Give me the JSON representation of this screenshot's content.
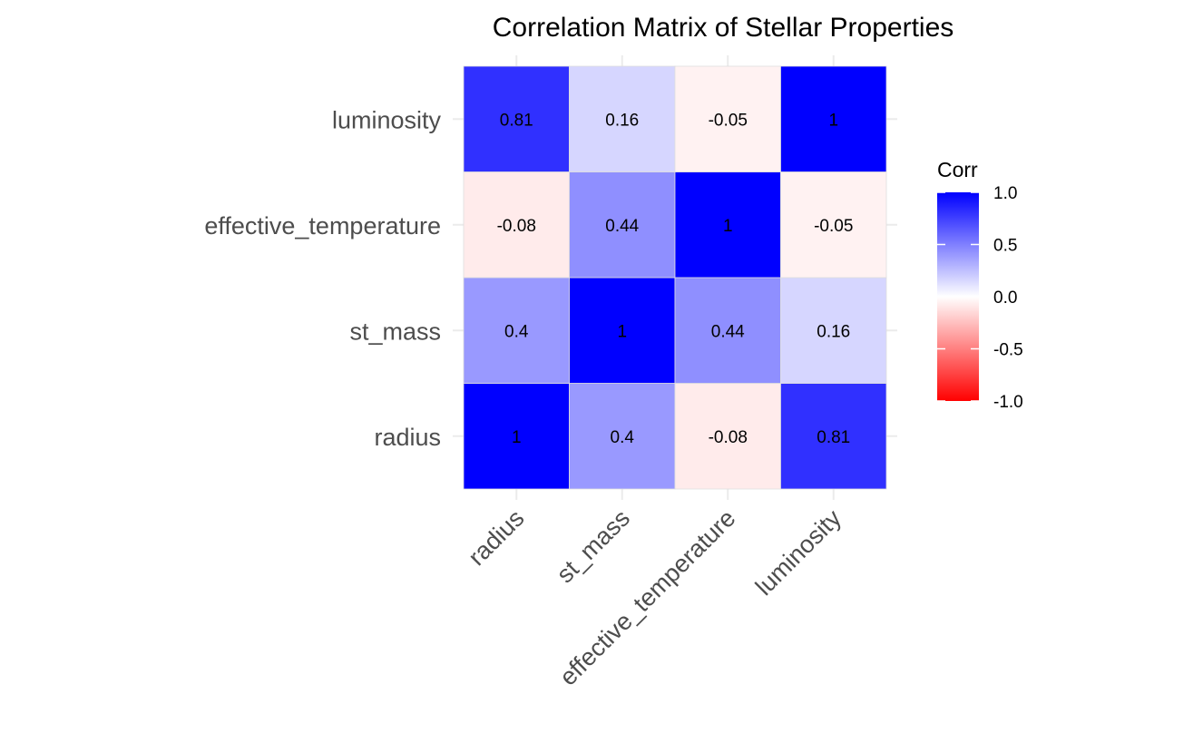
{
  "chart_data": {
    "type": "heatmap",
    "title": "Correlation Matrix of Stellar Properties",
    "variables": [
      "radius",
      "st_mass",
      "effective_temperature",
      "luminosity"
    ],
    "matrix": [
      [
        1,
        0.4,
        -0.08,
        0.81
      ],
      [
        0.4,
        1,
        0.44,
        0.16
      ],
      [
        -0.08,
        0.44,
        1,
        -0.05
      ],
      [
        0.81,
        0.16,
        -0.05,
        1
      ]
    ],
    "cell_labels": [
      [
        "1",
        "0.4",
        "-0.08",
        "0.81"
      ],
      [
        "0.4",
        "1",
        "0.44",
        "0.16"
      ],
      [
        "-0.08",
        "0.44",
        "1",
        "-0.05"
      ],
      [
        "0.81",
        "0.16",
        "-0.05",
        "1"
      ]
    ],
    "color_scale": {
      "low": "#ff0000",
      "mid": "#ffffff",
      "high": "#0000ff",
      "limits": [
        -1,
        1
      ]
    },
    "legend": {
      "title": "Corr",
      "ticks": [
        1.0,
        0.5,
        0.0,
        -0.5,
        -1.0
      ],
      "tick_labels": [
        "1.0",
        "0.5",
        "0.0",
        "-0.5",
        "-1.0"
      ],
      "placement": "right"
    },
    "grid": true
  }
}
